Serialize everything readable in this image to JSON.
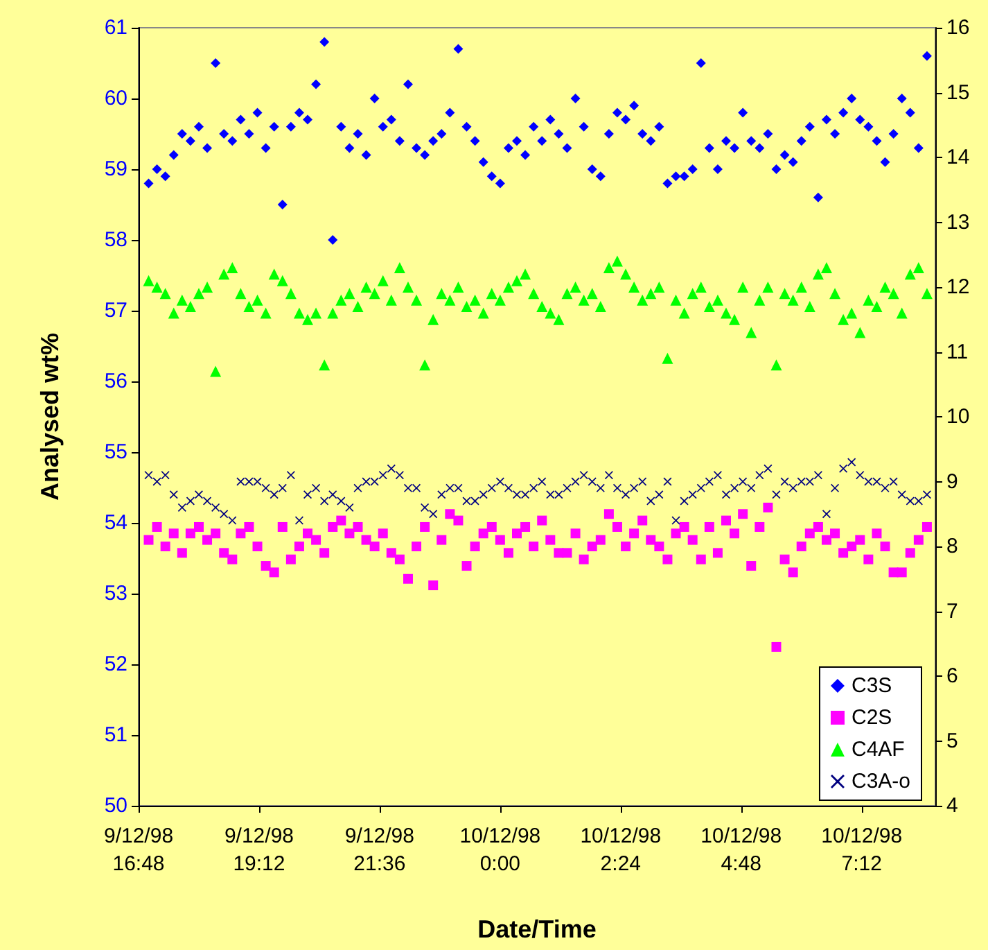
{
  "chart_data": {
    "type": "scatter",
    "xlabel": "Date/Time",
    "ylabel": "Analysed wt%",
    "x": [
      "1998-12-09T17:00",
      "1998-12-09T17:10",
      "1998-12-09T17:20",
      "1998-12-09T17:30",
      "1998-12-09T17:40",
      "1998-12-09T17:50",
      "1998-12-09T18:00",
      "1998-12-09T18:10",
      "1998-12-09T18:20",
      "1998-12-09T18:30",
      "1998-12-09T18:40",
      "1998-12-09T18:50",
      "1998-12-09T19:00",
      "1998-12-09T19:10",
      "1998-12-09T19:20",
      "1998-12-09T19:30",
      "1998-12-09T19:40",
      "1998-12-09T19:50",
      "1998-12-09T20:00",
      "1998-12-09T20:10",
      "1998-12-09T20:20",
      "1998-12-09T20:30",
      "1998-12-09T20:40",
      "1998-12-09T20:50",
      "1998-12-09T21:00",
      "1998-12-09T21:10",
      "1998-12-09T21:20",
      "1998-12-09T21:30",
      "1998-12-09T21:40",
      "1998-12-09T21:50",
      "1998-12-09T22:00",
      "1998-12-09T22:10",
      "1998-12-09T22:20",
      "1998-12-09T22:30",
      "1998-12-09T22:40",
      "1998-12-09T22:50",
      "1998-12-09T23:00",
      "1998-12-09T23:10",
      "1998-12-09T23:20",
      "1998-12-09T23:30",
      "1998-12-09T23:40",
      "1998-12-09T23:50",
      "1998-12-10T00:00",
      "1998-12-10T00:10",
      "1998-12-10T00:20",
      "1998-12-10T00:30",
      "1998-12-10T00:40",
      "1998-12-10T00:50",
      "1998-12-10T01:00",
      "1998-12-10T01:10",
      "1998-12-10T01:20",
      "1998-12-10T01:30",
      "1998-12-10T01:40",
      "1998-12-10T01:50",
      "1998-12-10T02:00",
      "1998-12-10T02:10",
      "1998-12-10T02:20",
      "1998-12-10T02:30",
      "1998-12-10T02:40",
      "1998-12-10T02:50",
      "1998-12-10T03:00",
      "1998-12-10T03:10",
      "1998-12-10T03:20",
      "1998-12-10T03:30",
      "1998-12-10T03:40",
      "1998-12-10T03:50",
      "1998-12-10T04:00",
      "1998-12-10T04:10",
      "1998-12-10T04:20",
      "1998-12-10T04:30",
      "1998-12-10T04:40",
      "1998-12-10T04:50",
      "1998-12-10T05:00",
      "1998-12-10T05:10",
      "1998-12-10T05:20",
      "1998-12-10T05:30",
      "1998-12-10T05:40",
      "1998-12-10T05:50",
      "1998-12-10T06:00",
      "1998-12-10T06:10",
      "1998-12-10T06:20",
      "1998-12-10T06:30",
      "1998-12-10T06:40",
      "1998-12-10T06:50",
      "1998-12-10T07:00",
      "1998-12-10T07:10",
      "1998-12-10T07:20",
      "1998-12-10T07:30",
      "1998-12-10T07:40",
      "1998-12-10T07:50",
      "1998-12-10T08:00",
      "1998-12-10T08:10",
      "1998-12-10T08:20",
      "1998-12-10T08:30"
    ],
    "series": [
      {
        "name": "C3S",
        "color": "#0000ff",
        "marker": "diamond",
        "values": [
          58.8,
          59.0,
          58.9,
          59.2,
          59.5,
          59.4,
          59.6,
          59.3,
          60.5,
          59.5,
          59.4,
          59.7,
          59.5,
          59.8,
          59.3,
          59.6,
          58.5,
          59.6,
          59.8,
          59.7,
          60.2,
          60.8,
          58.0,
          59.6,
          59.3,
          59.5,
          59.2,
          60.0,
          59.6,
          59.7,
          59.4,
          60.2,
          59.3,
          59.2,
          59.4,
          59.5,
          59.8,
          60.7,
          59.6,
          59.4,
          59.1,
          58.9,
          58.8,
          59.3,
          59.4,
          59.2,
          59.6,
          59.4,
          59.7,
          59.5,
          59.3,
          60.0,
          59.6,
          59.0,
          58.9,
          59.5,
          59.8,
          59.7,
          59.9,
          59.5,
          59.4,
          59.6,
          58.8,
          58.9,
          58.9,
          59.0,
          60.5,
          59.3,
          59.0,
          59.4,
          59.3,
          59.8,
          59.4,
          59.3,
          59.5,
          59.0,
          59.2,
          59.1,
          59.4,
          59.6,
          58.6,
          59.7,
          59.5,
          59.8,
          60.0,
          59.7,
          59.6,
          59.4,
          59.1,
          59.5,
          60.0,
          59.8,
          59.3,
          60.6
        ]
      },
      {
        "name": "C2S",
        "color": "#ff00ff",
        "marker": "square",
        "axis": "y2",
        "values": [
          8.1,
          8.3,
          8.0,
          8.2,
          7.9,
          8.2,
          8.3,
          8.1,
          8.2,
          7.9,
          7.8,
          8.2,
          8.3,
          8.0,
          7.7,
          7.6,
          8.3,
          7.8,
          8.0,
          8.2,
          8.1,
          7.9,
          8.3,
          8.4,
          8.2,
          8.3,
          8.1,
          8.0,
          8.2,
          7.9,
          7.8,
          7.5,
          8.0,
          8.3,
          7.4,
          8.1,
          8.5,
          8.4,
          7.7,
          8.0,
          8.2,
          8.3,
          8.1,
          7.9,
          8.2,
          8.3,
          8.0,
          8.4,
          8.1,
          7.9,
          7.9,
          8.2,
          7.8,
          8.0,
          8.1,
          8.5,
          8.3,
          8.0,
          8.2,
          8.4,
          8.1,
          8.0,
          7.8,
          8.2,
          8.3,
          8.1,
          7.8,
          8.3,
          7.9,
          8.4,
          8.2,
          8.5,
          7.7,
          8.3,
          8.6,
          6.45,
          7.8,
          7.6,
          8.0,
          8.2,
          8.3,
          8.1,
          8.2,
          7.9,
          8.0,
          8.1,
          7.8,
          8.2,
          8.0,
          7.6,
          7.6,
          7.9,
          8.1,
          8.3
        ]
      },
      {
        "name": "C4AF",
        "color": "#00ff00",
        "marker": "triangle",
        "axis": "y2",
        "values": [
          12.1,
          12.0,
          11.9,
          11.6,
          11.8,
          11.7,
          11.9,
          12.0,
          10.7,
          12.2,
          12.3,
          11.9,
          11.7,
          11.8,
          11.6,
          12.2,
          12.1,
          11.9,
          11.6,
          11.5,
          11.6,
          10.8,
          11.6,
          11.8,
          11.9,
          11.7,
          12.0,
          11.9,
          12.1,
          11.8,
          12.3,
          12.0,
          11.8,
          10.8,
          11.5,
          11.9,
          11.8,
          12.0,
          11.7,
          11.8,
          11.6,
          11.9,
          11.8,
          12.0,
          12.1,
          12.2,
          11.9,
          11.7,
          11.6,
          11.5,
          11.9,
          12.0,
          11.8,
          11.9,
          11.7,
          12.3,
          12.4,
          12.2,
          12.0,
          11.8,
          11.9,
          12.0,
          10.9,
          11.8,
          11.6,
          11.9,
          12.0,
          11.7,
          11.8,
          11.6,
          11.5,
          12.0,
          11.3,
          11.8,
          12.0,
          10.8,
          11.9,
          11.8,
          12.0,
          11.7,
          12.2,
          12.3,
          11.9,
          11.5,
          11.6,
          11.3,
          11.8,
          11.7,
          12.0,
          11.9,
          11.6,
          12.2,
          12.3,
          11.9
        ]
      },
      {
        "name": "C3A-o",
        "color": "#000080",
        "marker": "cross",
        "axis": "y2",
        "values": [
          9.1,
          9.0,
          9.1,
          8.8,
          8.6,
          8.7,
          8.8,
          8.7,
          8.6,
          8.5,
          8.4,
          9.0,
          9.0,
          9.0,
          8.9,
          8.8,
          8.9,
          9.1,
          8.4,
          8.8,
          8.9,
          8.7,
          8.8,
          8.7,
          8.6,
          8.9,
          9.0,
          9.0,
          9.1,
          9.2,
          9.1,
          8.9,
          8.9,
          8.6,
          8.5,
          8.8,
          8.9,
          8.9,
          8.7,
          8.7,
          8.8,
          8.9,
          9.0,
          8.9,
          8.8,
          8.8,
          8.9,
          9.0,
          8.8,
          8.8,
          8.9,
          9.0,
          9.1,
          9.0,
          8.9,
          9.1,
          8.9,
          8.8,
          8.9,
          9.0,
          8.7,
          8.8,
          9.0,
          8.4,
          8.7,
          8.8,
          8.9,
          9.0,
          9.1,
          8.8,
          8.9,
          9.0,
          8.9,
          9.1,
          9.2,
          8.8,
          9.0,
          8.9,
          9.0,
          9.0,
          9.1,
          8.5,
          8.9,
          9.2,
          9.3,
          9.1,
          9.0,
          9.0,
          8.9,
          9.0,
          8.8,
          8.7,
          8.7,
          8.8
        ]
      }
    ],
    "xlim": [
      "1998-12-09T16:48",
      "1998-12-10T08:40"
    ],
    "xticks": [
      {
        "value": "1998-12-09T16:48",
        "label": "9/12/98\n16:48"
      },
      {
        "value": "1998-12-09T19:12",
        "label": "9/12/98\n19:12"
      },
      {
        "value": "1998-12-09T21:36",
        "label": "9/12/98\n21:36"
      },
      {
        "value": "1998-12-10T00:00",
        "label": "10/12/98\n0:00"
      },
      {
        "value": "1998-12-10T02:24",
        "label": "10/12/98\n2:24"
      },
      {
        "value": "1998-12-10T04:48",
        "label": "10/12/98\n4:48"
      },
      {
        "value": "1998-12-10T07:12",
        "label": "10/12/98\n7:12"
      }
    ],
    "ylim": [
      50,
      61
    ],
    "yticks": [
      50,
      51,
      52,
      53,
      54,
      55,
      56,
      57,
      58,
      59,
      60,
      61
    ],
    "y2lim": [
      4,
      16
    ],
    "y2ticks": [
      4,
      5,
      6,
      7,
      8,
      9,
      10,
      11,
      12,
      13,
      14,
      15,
      16
    ],
    "grid": false,
    "legend": "bottom right"
  }
}
